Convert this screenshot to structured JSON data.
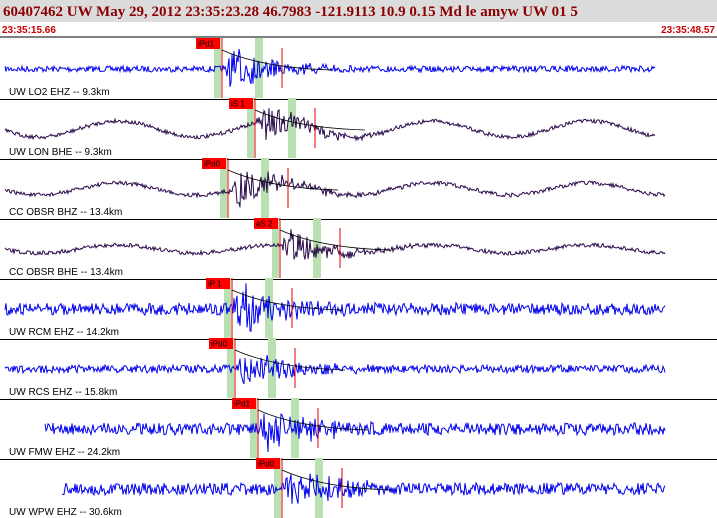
{
  "header": {
    "title": "60407462 UW May 29, 2012 23:35:23.28   46.7983 -121.9113 10.9 0.15 Md le amyw UW 01   5",
    "start_time": "23:35:15.66",
    "end_time": "23:35:48.57"
  },
  "traces": [
    {
      "label": "UW LO2 EHZ -- 9.3km",
      "pick": "iPd1",
      "color": "#0000ee"
    },
    {
      "label": "UW LON BHE -- 9.3km",
      "pick": "iS 1",
      "color": "#2a0a4a"
    },
    {
      "label": "CC OBSR BHZ -- 13.4km",
      "pick": "iPd0",
      "color": "#2a0a4a"
    },
    {
      "label": "CC OBSR BHE -- 13.4km",
      "pick": "eS 2",
      "color": "#2a0a4a"
    },
    {
      "label": "UW RCM EHZ -- 14.2km",
      "pick": "iP 1",
      "color": "#0000ee"
    },
    {
      "label": "UW RCS EHZ -- 15.8km",
      "pick": "iPd0",
      "color": "#0000ee"
    },
    {
      "label": "UW FMW EHZ -- 24.2km",
      "pick": "iPd1",
      "color": "#0000ee"
    },
    {
      "label": "UW WPW EHZ -- 30.6km",
      "pick": "iPd0",
      "color": "#0000ee"
    }
  ]
}
